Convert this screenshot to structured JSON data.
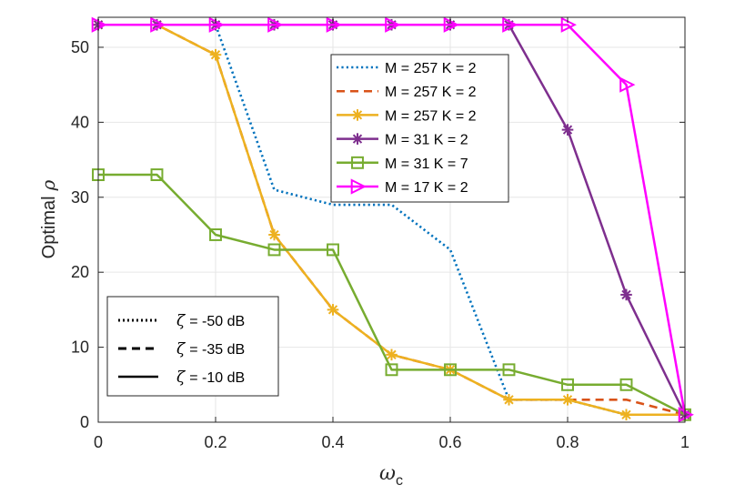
{
  "chart_data": {
    "type": "line",
    "xlabel": "ω",
    "xlabel_sub": "c",
    "ylabel_text": "Optimal",
    "ylabel_symbol": "ρ",
    "xlim": [
      0,
      1
    ],
    "ylim": [
      0,
      54
    ],
    "x_ticks": [
      0,
      0.2,
      0.4,
      0.6,
      0.8,
      1
    ],
    "x_tick_labels": [
      "0",
      "0.2",
      "0.4",
      "0.6",
      "0.8",
      "1"
    ],
    "y_ticks": [
      0,
      10,
      20,
      30,
      40,
      50
    ],
    "y_tick_labels": [
      "0",
      "10",
      "20",
      "30",
      "40",
      "50"
    ],
    "grid": true,
    "legend_position": "top-right",
    "series": [
      {
        "name": "M = 257 K = 2",
        "style": "dotted",
        "marker": "none",
        "color": "#0072BD",
        "x": [
          0,
          0.1,
          0.2,
          0.3,
          0.4,
          0.5,
          0.6,
          0.7,
          0.8,
          0.9,
          1
        ],
        "y": [
          53,
          53,
          53,
          31,
          29,
          29,
          23,
          3,
          3,
          1,
          1
        ]
      },
      {
        "name": "M = 257 K = 2",
        "style": "dashed",
        "marker": "none",
        "color": "#D95319",
        "x": [
          0,
          0.1,
          0.2,
          0.3,
          0.4,
          0.5,
          0.6,
          0.7,
          0.8,
          0.9,
          1
        ],
        "y": [
          53,
          53,
          49,
          25,
          15,
          9,
          7,
          3,
          3,
          3,
          1
        ]
      },
      {
        "name": "M = 257 K = 2",
        "style": "solid",
        "marker": "asterisk",
        "color": "#EDB120",
        "x": [
          0,
          0.1,
          0.2,
          0.3,
          0.4,
          0.5,
          0.6,
          0.7,
          0.8,
          0.9,
          1
        ],
        "y": [
          53,
          53,
          49,
          25,
          15,
          9,
          7,
          3,
          3,
          1,
          1
        ]
      },
      {
        "name": "M = 31 K = 2",
        "style": "solid",
        "marker": "asterisk",
        "color": "#7E2F8E",
        "x": [
          0,
          0.1,
          0.2,
          0.3,
          0.4,
          0.5,
          0.6,
          0.7,
          0.8,
          0.9,
          1
        ],
        "y": [
          53,
          53,
          53,
          53,
          53,
          53,
          53,
          53,
          39,
          17,
          1
        ]
      },
      {
        "name": "M = 31 K = 7",
        "style": "solid",
        "marker": "square",
        "color": "#77AC30",
        "x": [
          0,
          0.1,
          0.2,
          0.3,
          0.4,
          0.5,
          0.6,
          0.7,
          0.8,
          0.9,
          1
        ],
        "y": [
          33,
          33,
          25,
          23,
          23,
          7,
          7,
          7,
          5,
          5,
          1
        ]
      },
      {
        "name": "M = 17 K = 2",
        "style": "solid",
        "marker": "triangle-right",
        "color": "#FF00FF",
        "x": [
          0,
          0.1,
          0.2,
          0.3,
          0.4,
          0.5,
          0.6,
          0.7,
          0.8,
          0.9,
          1
        ],
        "y": [
          53,
          53,
          53,
          53,
          53,
          53,
          53,
          53,
          53,
          45,
          1
        ]
      }
    ],
    "style_legend": {
      "symbol": "ζ",
      "entries": [
        {
          "label": "= -50 dB",
          "style": "dotted"
        },
        {
          "label": "= -35 dB",
          "style": "dashed"
        },
        {
          "label": "= -10 dB",
          "style": "solid"
        }
      ]
    }
  }
}
